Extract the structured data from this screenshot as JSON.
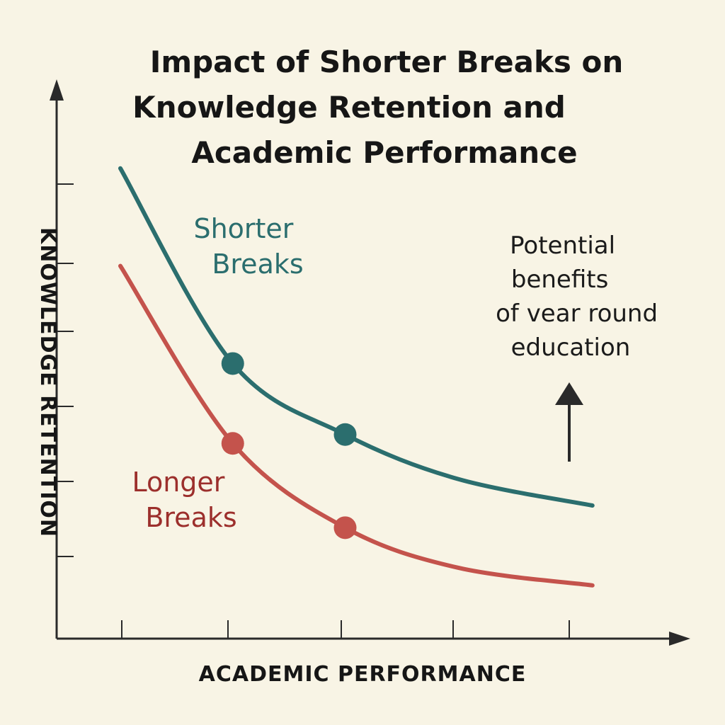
{
  "chart_data": {
    "type": "line",
    "title_lines": [
      "Impact of Shorter Breaks on",
      "Knowledge Retention and",
      "Academic Performance"
    ],
    "xlabel": "ACADEMIC PERFORMANCE",
    "ylabel": "KNOWLEDGE RETENTION",
    "x_ticks": 5,
    "y_ticks": 6,
    "grid": false,
    "series": [
      {
        "name": "Shorter Breaks",
        "label_lines": [
          "Shorter",
          "Breaks"
        ],
        "color": "#2b6e6e",
        "points": [
          [
            0,
            10.6
          ],
          [
            1,
            6.2
          ],
          [
            2,
            4.6
          ],
          [
            3,
            3.6
          ],
          [
            4.2,
            3.0
          ]
        ],
        "markers": [
          [
            1,
            6.2
          ],
          [
            2,
            4.6
          ]
        ]
      },
      {
        "name": "Longer Breaks",
        "label_lines": [
          "Longer",
          "Breaks"
        ],
        "color": "#c4534c",
        "label_color": "#9c2f2c",
        "points": [
          [
            0,
            8.4
          ],
          [
            1,
            4.4
          ],
          [
            2,
            2.5
          ],
          [
            3,
            1.6
          ],
          [
            4.2,
            1.2
          ]
        ],
        "markers": [
          [
            1,
            4.4
          ],
          [
            2,
            2.5
          ]
        ]
      }
    ],
    "annotation": {
      "lines": [
        "Potential",
        "benefits",
        "of vear round",
        "education"
      ],
      "arrow": "up"
    }
  }
}
